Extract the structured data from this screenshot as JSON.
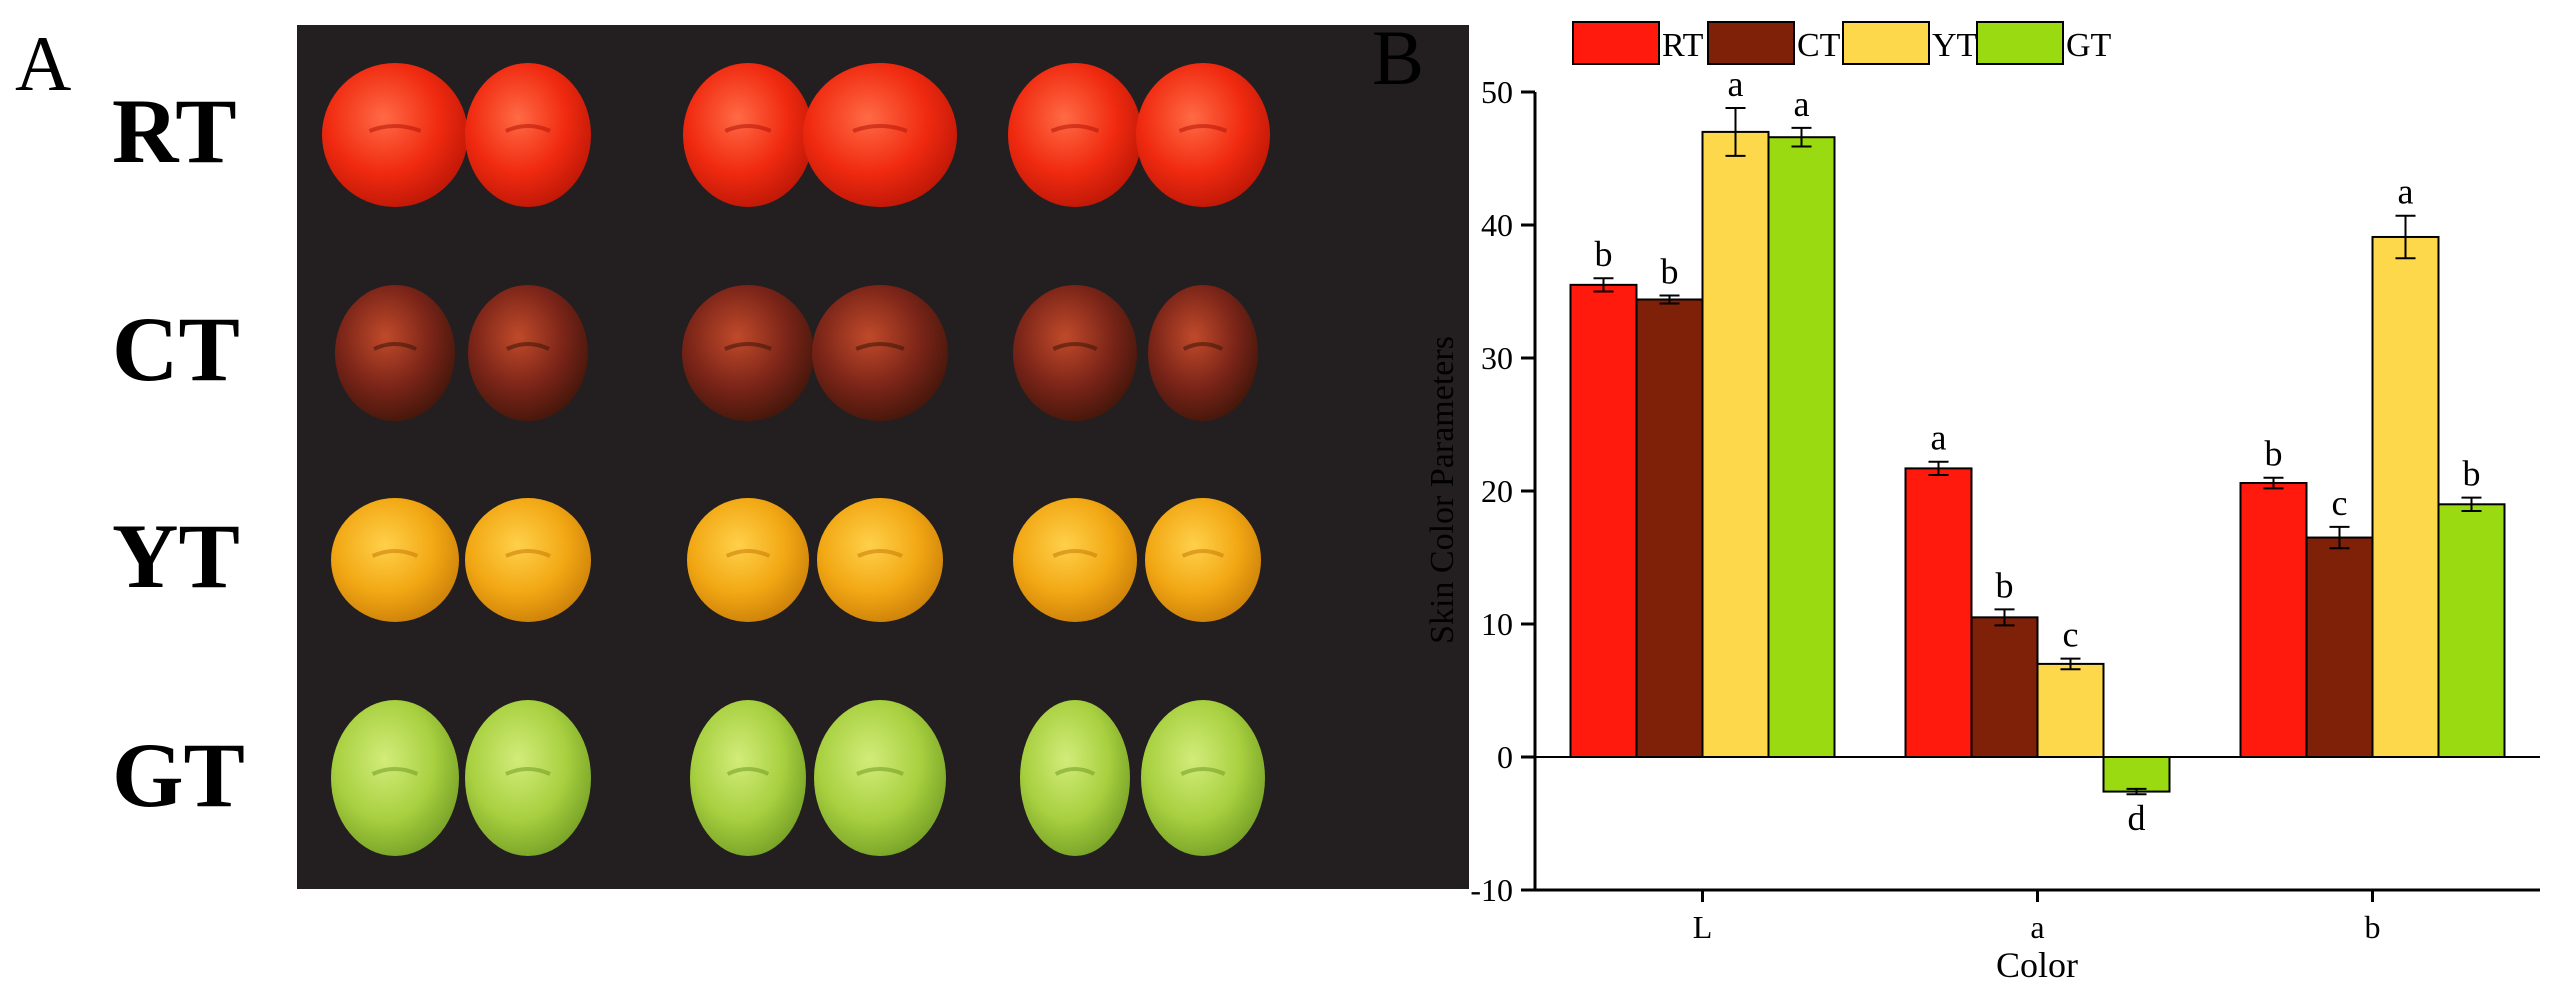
{
  "panel_a": {
    "label": "A",
    "rows": [
      {
        "label": "RT",
        "fruit_color": "#f02a10",
        "shade": "#b51405",
        "highlight": "#ff6a45"
      },
      {
        "label": "CT",
        "fruit_color": "#7a2418",
        "shade": "#3a1408",
        "highlight": "#c04a2a"
      },
      {
        "label": "YT",
        "fruit_color": "#f2a814",
        "shade": "#c77a08",
        "highlight": "#ffd04a"
      },
      {
        "label": "GT",
        "fruit_color": "#a8d040",
        "shade": "#6f9a22",
        "highlight": "#d2ec7a"
      }
    ],
    "background_color": "#231f20"
  },
  "panel_b": {
    "label": "B"
  },
  "chart_data": {
    "type": "bar",
    "categories": [
      "L",
      "a",
      "b"
    ],
    "series": [
      {
        "name": "RT",
        "color": "#ff1a0d",
        "values": [
          35.5,
          21.7,
          20.6
        ],
        "errors": [
          0.5,
          0.5,
          0.4
        ],
        "letters": [
          "b",
          "a",
          "b"
        ]
      },
      {
        "name": "CT",
        "color": "#7f2108",
        "values": [
          34.4,
          10.5,
          16.5
        ],
        "errors": [
          0.3,
          0.6,
          0.8
        ],
        "letters": [
          "b",
          "b",
          "c"
        ]
      },
      {
        "name": "YT",
        "color": "#fdd84a",
        "values": [
          47.0,
          7.0,
          39.1
        ],
        "errors": [
          1.8,
          0.4,
          1.6
        ],
        "letters": [
          "a",
          "c",
          "a"
        ]
      },
      {
        "name": "GT",
        "color": "#9ada10",
        "values": [
          46.6,
          -2.6,
          19.0
        ],
        "errors": [
          0.7,
          0.2,
          0.5
        ],
        "letters": [
          "a",
          "d",
          "b"
        ]
      }
    ],
    "title": "",
    "xlabel": "Color",
    "ylabel": "Skin Color Parameters",
    "ylim": [
      -10,
      50
    ],
    "yticks": [
      -10,
      0,
      10,
      20,
      30,
      40,
      50
    ],
    "legend": "top",
    "grid": false
  }
}
